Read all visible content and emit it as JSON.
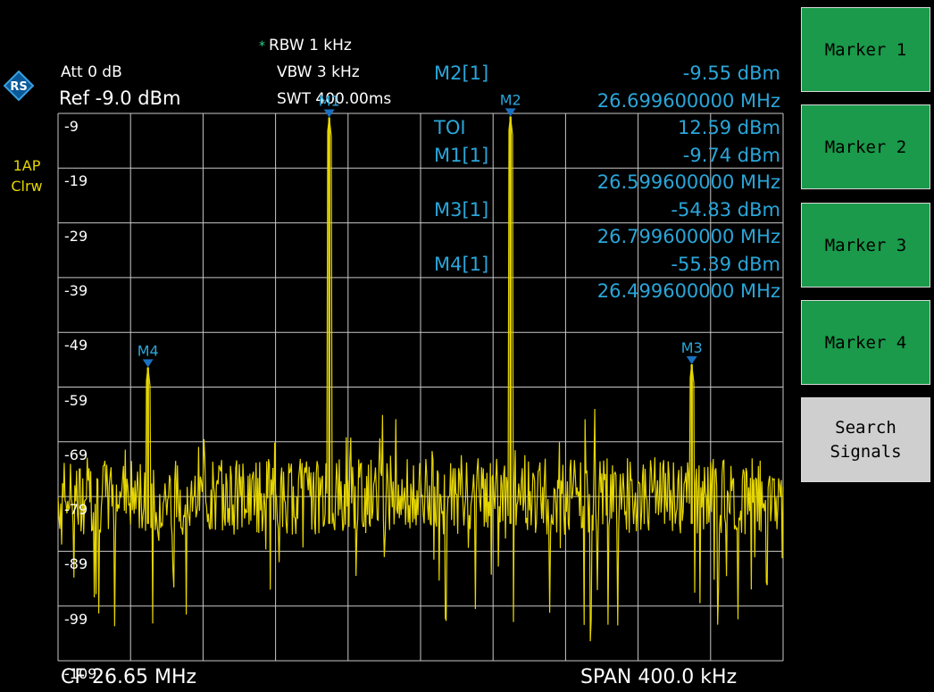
{
  "settings": {
    "att": "Att  0 dB",
    "ref": "Ref -9.0 dBm",
    "rbw": "RBW  1 kHz",
    "vbw": "VBW  3 kHz",
    "swt": "SWT  400.00ms",
    "rbw_marker": "*"
  },
  "trace": {
    "line1": "1AP",
    "line2": "Clrw",
    "color": "#e6d600"
  },
  "marker_table": [
    {
      "label": "M2[1]",
      "value": "-9.55 dBm"
    },
    {
      "label": "",
      "value": "26.699600000 MHz"
    },
    {
      "label": "TOI",
      "value": "12.59 dBm"
    },
    {
      "label": "M1[1]",
      "value": "-9.74 dBm"
    },
    {
      "label": "",
      "value": "26.599600000 MHz"
    },
    {
      "label": "M3[1]",
      "value": "-54.83 dBm"
    },
    {
      "label": "",
      "value": "26.799600000 MHz"
    },
    {
      "label": "M4[1]",
      "value": "-55.39 dBm"
    },
    {
      "label": "",
      "value": "26.499600000 MHz"
    }
  ],
  "yticks": [
    "-9",
    "-19",
    "-29",
    "-39",
    "-49",
    "-59",
    "-69",
    "-79",
    "-89",
    "-99",
    "-109"
  ],
  "markers": [
    {
      "name": "M1",
      "freq_mhz": 26.5996,
      "level_dbm": -9.74
    },
    {
      "name": "M2",
      "freq_mhz": 26.6996,
      "level_dbm": -9.55
    },
    {
      "name": "M3",
      "freq_mhz": 26.7996,
      "level_dbm": -54.83
    },
    {
      "name": "M4",
      "freq_mhz": 26.4996,
      "level_dbm": -55.39
    }
  ],
  "footer": {
    "cf": "CF 26.65 MHz",
    "span": "SPAN 400.0 kHz"
  },
  "softkeys": {
    "marker1": "Marker 1",
    "marker2": "Marker 2",
    "marker3": "Marker 3",
    "marker4": "Marker 4",
    "search_line1": "Search",
    "search_line2": "Signals"
  },
  "colors": {
    "marker_text": "#2aa6d9",
    "softkey_green": "#1a9a4a",
    "trace": "#e6d600"
  },
  "chart_data": {
    "type": "line",
    "x_range_mhz": [
      26.45,
      26.85
    ],
    "ylim": [
      -109,
      -9
    ],
    "grid": true,
    "peaks": [
      {
        "x": 26.4996,
        "y": -55.39
      },
      {
        "x": 26.5996,
        "y": -9.74
      },
      {
        "x": 26.6996,
        "y": -9.55
      },
      {
        "x": 26.7996,
        "y": -54.83
      }
    ],
    "noise_floor_dbm": -79
  }
}
